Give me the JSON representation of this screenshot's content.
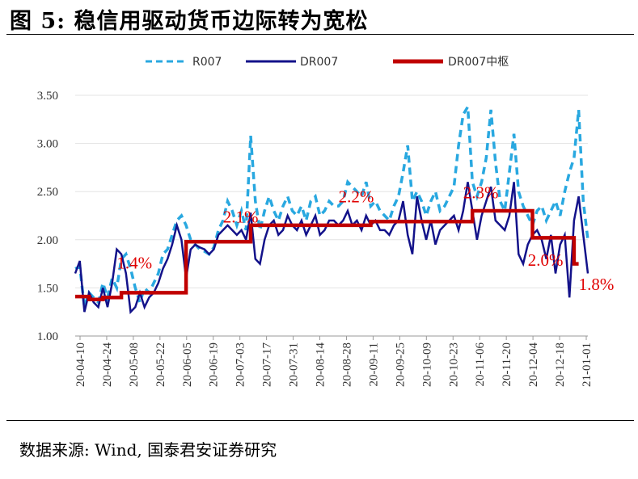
{
  "figure": {
    "title": "图 5:  稳信用驱动货币边际转为宽松",
    "source": "数据来源:  Wind, 国泰君安证券研究"
  },
  "chart_data": {
    "type": "line",
    "x_ticks": [
      "20-04-10",
      "20-04-24",
      "20-05-08",
      "20-05-22",
      "20-06-05",
      "20-06-19",
      "20-07-03",
      "20-07-17",
      "20-07-31",
      "20-08-14",
      "20-08-28",
      "20-09-11",
      "20-09-25",
      "20-10-09",
      "20-10-23",
      "20-11-06",
      "20-11-20",
      "20-12-04",
      "20-12-18",
      "21-01-01"
    ],
    "ylim": [
      1.0,
      3.5
    ],
    "y_ticks": [
      "1.00",
      "1.50",
      "2.00",
      "2.50",
      "3.00",
      "3.50"
    ],
    "legend": [
      "R007",
      "DR007",
      "DR007中枢"
    ],
    "colors": {
      "R007": "#29a8e0",
      "DR007": "#13128a",
      "pivot": "#c00000",
      "annotation": "#e00000"
    },
    "series": [
      {
        "name": "R007",
        "values": [
          1.7,
          1.72,
          1.3,
          1.45,
          1.4,
          1.35,
          1.55,
          1.4,
          1.6,
          1.5,
          1.8,
          1.85,
          1.7,
          1.5,
          1.35,
          1.5,
          1.45,
          1.55,
          1.65,
          1.85,
          1.9,
          2.05,
          2.2,
          2.25,
          2.15,
          2.0,
          1.95,
          1.9,
          1.88,
          1.85,
          1.92,
          2.1,
          2.2,
          2.4,
          2.3,
          2.15,
          2.3,
          2.1,
          3.08,
          2.4,
          2.1,
          2.3,
          2.45,
          2.3,
          2.2,
          2.35,
          2.45,
          2.3,
          2.25,
          2.35,
          2.2,
          2.4,
          2.45,
          2.25,
          2.3,
          2.4,
          2.35,
          2.35,
          2.4,
          2.6,
          2.55,
          2.5,
          2.45,
          2.6,
          2.35,
          2.4,
          2.3,
          2.25,
          2.2,
          2.35,
          2.45,
          2.7,
          2.98,
          2.4,
          2.5,
          2.4,
          2.25,
          2.4,
          2.5,
          2.3,
          2.35,
          2.45,
          2.55,
          2.98,
          3.3,
          3.38,
          2.6,
          2.45,
          2.6,
          2.85,
          3.35,
          2.8,
          2.4,
          2.3,
          2.7,
          3.1,
          2.5,
          2.35,
          2.25,
          2.15,
          2.3,
          2.35,
          2.2,
          2.3,
          2.4,
          2.25,
          2.5,
          2.7,
          2.85,
          3.35,
          2.4,
          2.0
        ]
      },
      {
        "name": "DR007",
        "values": [
          1.65,
          1.78,
          1.25,
          1.45,
          1.35,
          1.3,
          1.5,
          1.3,
          1.55,
          1.9,
          1.85,
          1.65,
          1.25,
          1.3,
          1.45,
          1.3,
          1.4,
          1.45,
          1.55,
          1.7,
          1.8,
          1.95,
          2.15,
          2.0,
          1.6,
          1.9,
          1.95,
          1.92,
          1.9,
          1.85,
          1.9,
          2.05,
          2.1,
          2.15,
          2.1,
          2.05,
          2.1,
          2.0,
          2.28,
          1.8,
          1.75,
          2.0,
          2.15,
          2.2,
          2.05,
          2.1,
          2.25,
          2.15,
          2.1,
          2.2,
          2.05,
          2.15,
          2.25,
          2.05,
          2.1,
          2.2,
          2.2,
          2.15,
          2.2,
          2.3,
          2.15,
          2.2,
          2.1,
          2.25,
          2.15,
          2.2,
          2.1,
          2.1,
          2.05,
          2.15,
          2.2,
          2.4,
          2.05,
          1.85,
          2.45,
          2.2,
          2.0,
          2.2,
          1.95,
          2.1,
          2.15,
          2.2,
          2.25,
          2.1,
          2.3,
          2.6,
          2.3,
          2.0,
          2.25,
          2.4,
          2.55,
          2.2,
          2.15,
          2.1,
          2.25,
          2.6,
          1.85,
          1.75,
          1.95,
          2.05,
          2.1,
          2.0,
          1.8,
          2.05,
          1.65,
          1.95,
          2.05,
          1.4,
          2.2,
          2.45,
          2.05,
          1.65
        ]
      }
    ],
    "pivot": {
      "name": "DR007中枢",
      "steps": [
        {
          "from": 0,
          "to": 3,
          "value": 1.41
        },
        {
          "from": 3,
          "to": 6,
          "value": 1.38
        },
        {
          "from": 6,
          "to": 10,
          "value": 1.4
        },
        {
          "from": 10,
          "to": 24,
          "value": 1.45
        },
        {
          "from": 24,
          "to": 38,
          "value": 1.98
        },
        {
          "from": 38,
          "to": 64,
          "value": 2.15
        },
        {
          "from": 64,
          "to": 86,
          "value": 2.19
        },
        {
          "from": 86,
          "to": 99,
          "value": 2.3
        },
        {
          "from": 99,
          "to": 108,
          "value": 2.02
        },
        {
          "from": 108,
          "to": 109,
          "value": 1.75
        }
      ]
    },
    "annotations": [
      {
        "text": "1.4%",
        "x": 9,
        "y": 1.7
      },
      {
        "text": "2.1%",
        "x": 32,
        "y": 2.18
      },
      {
        "text": "2.2%",
        "x": 57,
        "y": 2.39
      },
      {
        "text": "2.3%",
        "x": 84,
        "y": 2.43
      },
      {
        "text": "2.0%",
        "x": 98,
        "y": 1.73
      },
      {
        "text": "1.8%",
        "x": 109,
        "y": 1.48
      }
    ]
  }
}
